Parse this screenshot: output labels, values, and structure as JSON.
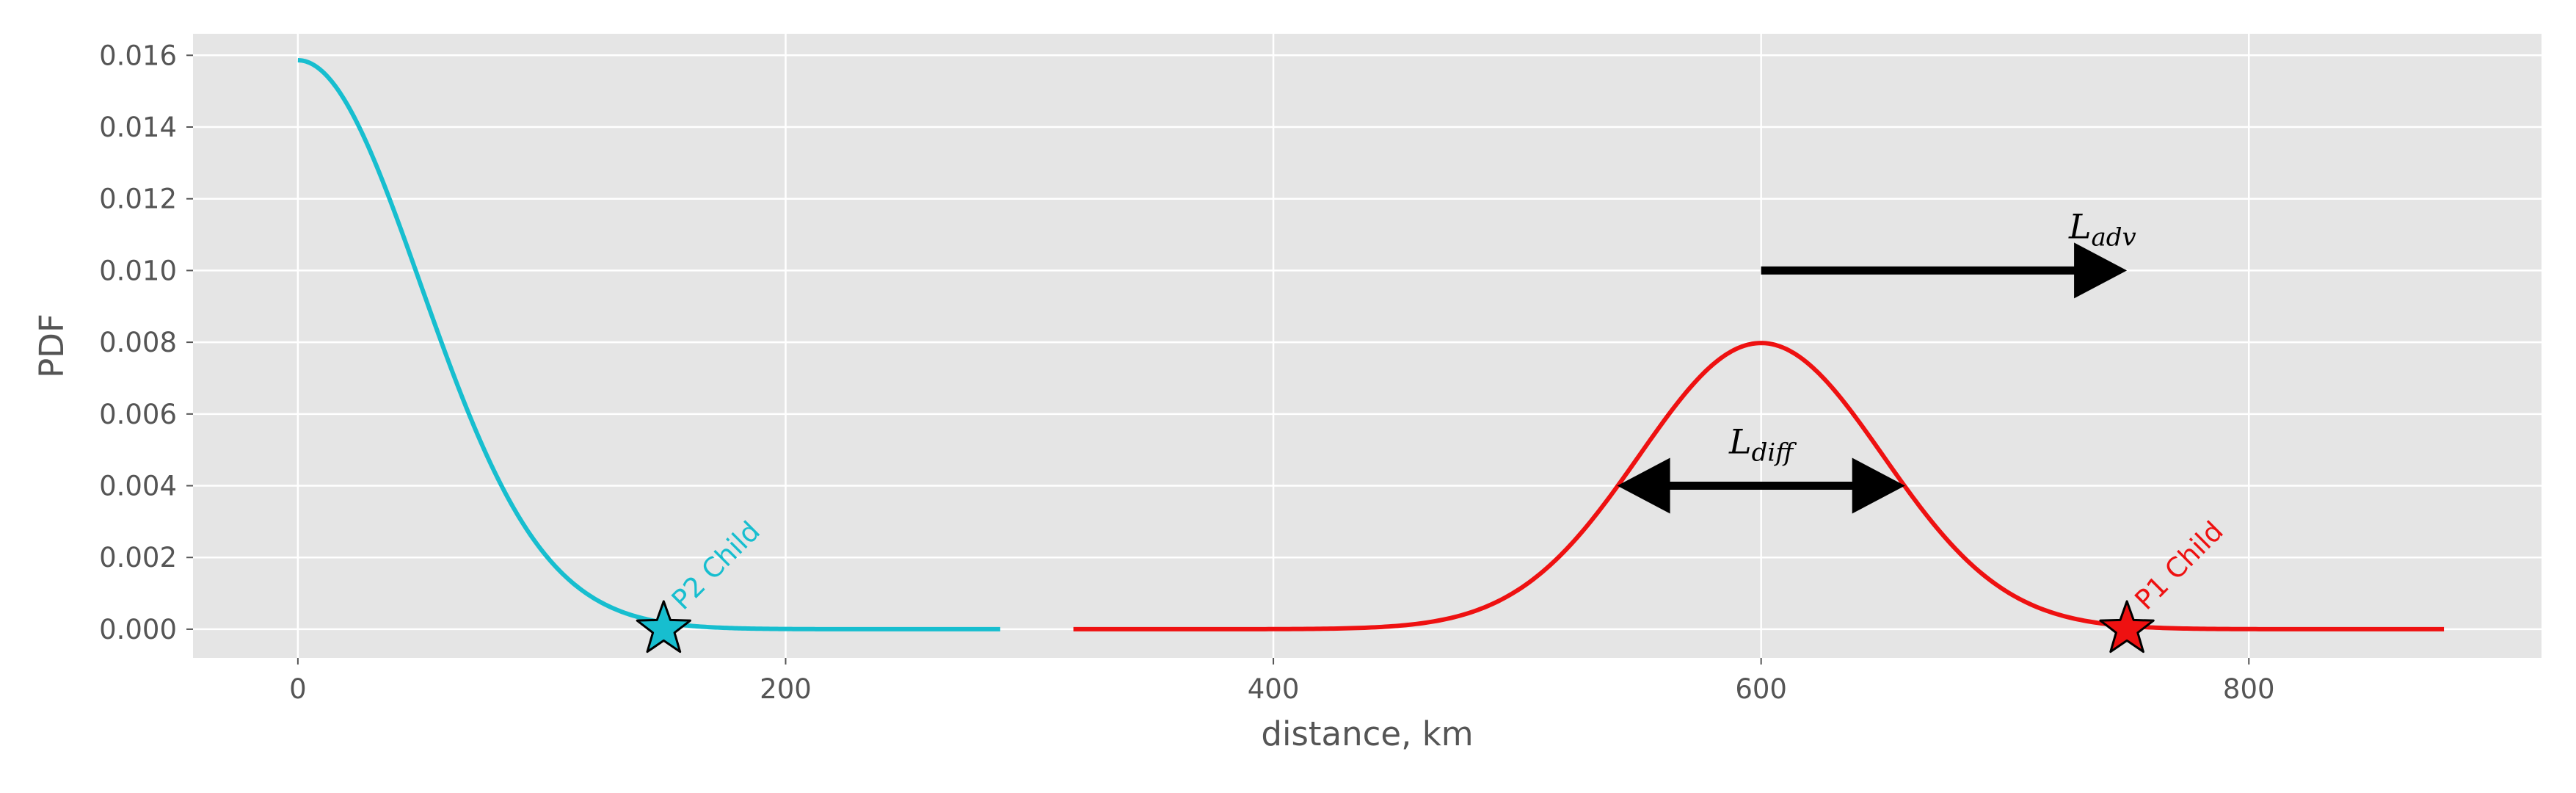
{
  "chart_data": {
    "type": "line",
    "xlabel": "distance, km",
    "ylabel": "PDF",
    "xlim": [
      -43,
      920
    ],
    "ylim": [
      -0.0008,
      0.0166
    ],
    "xticks": [
      0,
      200,
      400,
      600,
      800
    ],
    "yticks": [
      0.0,
      0.002,
      0.004,
      0.006,
      0.008,
      0.01,
      0.012,
      0.014,
      0.016
    ],
    "ytick_labels": [
      "0.000",
      "0.002",
      "0.004",
      "0.006",
      "0.008",
      "0.010",
      "0.012",
      "0.014",
      "0.016"
    ],
    "grid": true,
    "background": "#e5e5e5",
    "series": [
      {
        "color": "#17becf",
        "curve": "half-gaussian",
        "mean": 0,
        "sigma": 50.3,
        "x_range": [
          0,
          288
        ]
      },
      {
        "color": "#ee1111",
        "curve": "gaussian",
        "mean": 600,
        "sigma": 50,
        "x_range": [
          318,
          880
        ]
      }
    ],
    "markers": [
      {
        "shape": "star",
        "x": 150,
        "y": 0.0,
        "color": "#17becf"
      },
      {
        "shape": "star",
        "x": 750,
        "y": 0.0,
        "color": "#ee1111"
      }
    ],
    "annotations": [
      {
        "text": "P2 Child",
        "x": 158,
        "y": 0.0005,
        "color": "#17becf",
        "rotation": 45
      },
      {
        "text": "P1 Child",
        "x": 758,
        "y": 0.0005,
        "color": "#ee1111",
        "rotation": 45
      }
    ],
    "arrows": [
      {
        "name": "L_adv",
        "label_main": "L",
        "label_sub": "adv",
        "x_start": 600,
        "x_end": 750,
        "y": 0.01,
        "double_headed": false,
        "label_x": 740,
        "label_y": 0.0109
      },
      {
        "name": "L_diff",
        "label_main": "L",
        "label_sub": "diff",
        "x_start": 541,
        "x_end": 659,
        "y": 0.004,
        "double_headed": true,
        "label_x": 600,
        "label_y": 0.0049
      }
    ]
  }
}
